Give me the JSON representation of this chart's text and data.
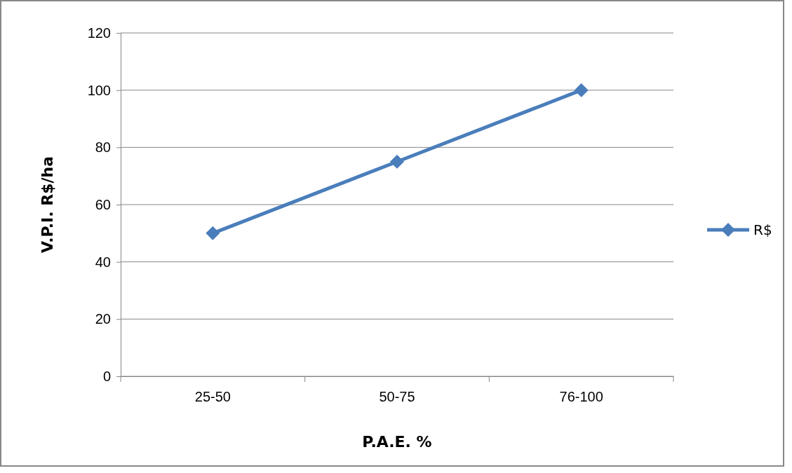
{
  "chart_data": {
    "type": "line",
    "xlabel": "P.A.E. %",
    "ylabel": "V.P.I. R$/ha",
    "categories": [
      "25-50",
      "50-75",
      "76-100"
    ],
    "series": [
      {
        "name": "R$",
        "color": "#4a7ebb",
        "values": [
          50,
          75,
          100
        ]
      }
    ],
    "ylim": [
      0,
      120
    ],
    "yticks": [
      0,
      20,
      40,
      60,
      80,
      100,
      120
    ],
    "grid": "y",
    "legend": "right",
    "marker": "diamond",
    "line_style": "solid"
  }
}
